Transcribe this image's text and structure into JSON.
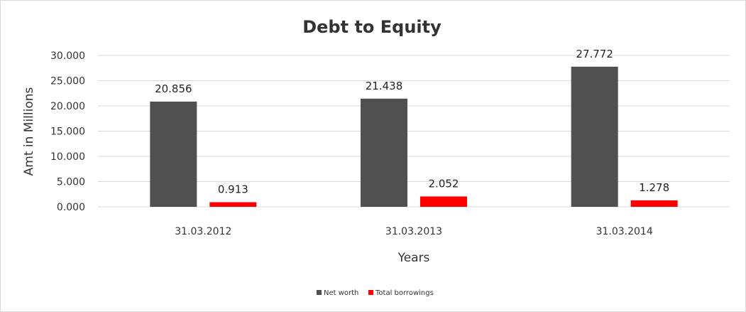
{
  "chart_data": {
    "type": "bar",
    "title": "Debt to Equity",
    "xlabel": "Years",
    "ylabel": "Amt in Millions",
    "categories": [
      "31.03.2012",
      "31.03.2013",
      "31.03.2014"
    ],
    "series": [
      {
        "name": "Net worth",
        "values": [
          20.856,
          21.438,
          27.772
        ],
        "labels": [
          "20.856",
          "21.438",
          "27.772"
        ],
        "color": "#505050"
      },
      {
        "name": "Total borrowings",
        "values": [
          0.913,
          2.052,
          1.278
        ],
        "labels": [
          "0.913",
          "2.052",
          "1.278"
        ],
        "color": "#ff0000"
      }
    ],
    "ylim": [
      0,
      30
    ],
    "yticks": [
      "0.000",
      "5.000",
      "10.000",
      "15.000",
      "20.000",
      "25.000",
      "30.000"
    ],
    "ytick_values": [
      0,
      5,
      10,
      15,
      20,
      25,
      30
    ],
    "grid": true,
    "legend_position": "bottom"
  }
}
